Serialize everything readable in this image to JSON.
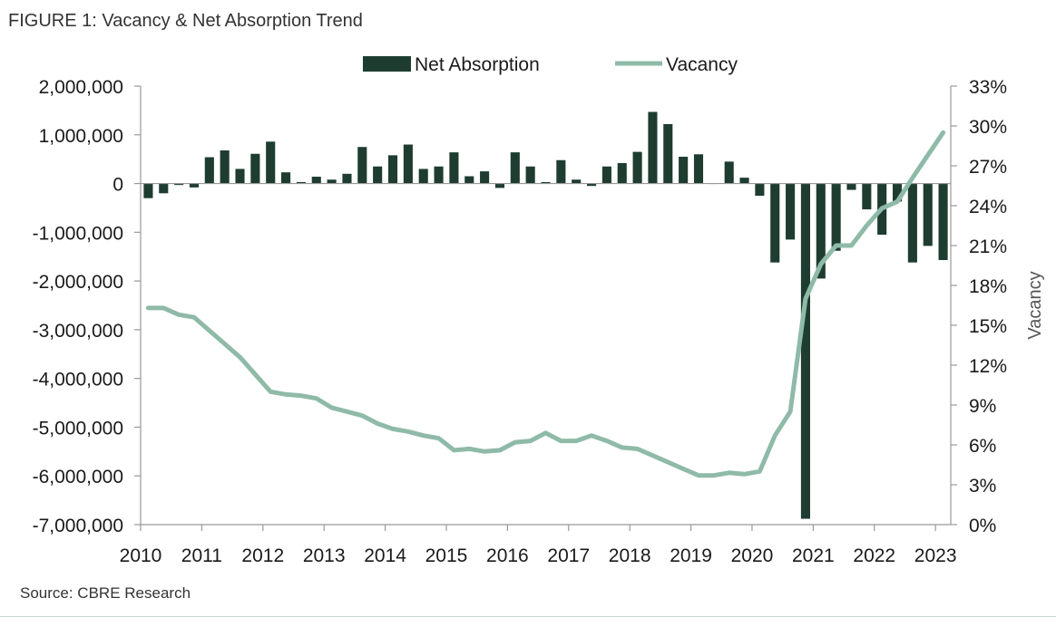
{
  "figure_title": "FIGURE 1: Vacancy & Net Absorption Trend",
  "source": "Source: CBRE Research",
  "colors": {
    "bars": "#1e3d30",
    "line": "#8fbaa8",
    "axis": "#999999"
  },
  "chart_data": {
    "type": "bar+line",
    "legend": {
      "placement": "top-center",
      "items": [
        "Net Absorption",
        "Vacancy"
      ]
    },
    "grid": false,
    "xlabel": "",
    "x_tick_labels": [
      "2010",
      "2011",
      "2012",
      "2013",
      "2014",
      "2015",
      "2016",
      "2017",
      "2018",
      "2019",
      "2020",
      "2021",
      "2022",
      "2023"
    ],
    "left_axis": {
      "label": "",
      "ylim": [
        -7000000,
        2000000
      ],
      "tick_labels": [
        "2,000,000",
        "1,000,000",
        "0",
        "-1,000,000",
        "-2,000,000",
        "-3,000,000",
        "-4,000,000",
        "-5,000,000",
        "-6,000,000",
        "-7,000,000"
      ]
    },
    "right_axis": {
      "label": "Vacancy",
      "ylim": [
        0,
        33
      ],
      "tick_labels": [
        "33%",
        "30%",
        "27%",
        "24%",
        "21%",
        "18%",
        "15%",
        "12%",
        "9%",
        "6%",
        "3%",
        "0%"
      ]
    },
    "quarters": [
      "2010 Q1",
      "2010 Q2",
      "2010 Q3",
      "2010 Q4",
      "2011 Q1",
      "2011 Q2",
      "2011 Q3",
      "2011 Q4",
      "2012 Q1",
      "2012 Q2",
      "2012 Q3",
      "2012 Q4",
      "2013 Q1",
      "2013 Q2",
      "2013 Q3",
      "2013 Q4",
      "2014 Q1",
      "2014 Q2",
      "2014 Q3",
      "2014 Q4",
      "2015 Q1",
      "2015 Q2",
      "2015 Q3",
      "2015 Q4",
      "2016 Q1",
      "2016 Q2",
      "2016 Q3",
      "2016 Q4",
      "2017 Q1",
      "2017 Q2",
      "2017 Q3",
      "2017 Q4",
      "2018 Q1",
      "2018 Q2",
      "2018 Q3",
      "2018 Q4",
      "2019 Q1",
      "2019 Q2",
      "2019 Q3",
      "2019 Q4",
      "2020 Q1",
      "2020 Q2",
      "2020 Q3",
      "2020 Q4",
      "2021 Q1",
      "2021 Q2",
      "2021 Q3",
      "2021 Q4",
      "2022 Q1",
      "2022 Q2",
      "2022 Q3",
      "2022 Q4",
      "2023 Q1"
    ],
    "series": [
      {
        "name": "Net Absorption",
        "type": "bar",
        "axis": "left",
        "values": [
          -300000,
          -200000,
          -30000,
          -80000,
          540000,
          680000,
          300000,
          610000,
          860000,
          230000,
          30000,
          140000,
          80000,
          200000,
          750000,
          350000,
          580000,
          800000,
          300000,
          350000,
          640000,
          150000,
          250000,
          -90000,
          640000,
          350000,
          30000,
          480000,
          80000,
          -50000,
          350000,
          420000,
          650000,
          1470000,
          1220000,
          550000,
          600000,
          0,
          450000,
          120000,
          -250000,
          -1620000,
          -1150000,
          -6880000,
          -1950000,
          -1380000,
          -130000,
          -530000,
          -1050000,
          -370000,
          -1620000,
          -1280000,
          -1570000
        ]
      },
      {
        "name": "Vacancy",
        "type": "line",
        "axis": "right",
        "values": [
          16.3,
          16.3,
          15.8,
          15.6,
          14.6,
          13.6,
          12.6,
          11.3,
          10.0,
          9.8,
          9.7,
          9.5,
          8.8,
          8.5,
          8.2,
          7.6,
          7.2,
          7.0,
          6.7,
          6.5,
          5.6,
          5.7,
          5.5,
          5.6,
          6.2,
          6.3,
          6.9,
          6.3,
          6.3,
          6.7,
          6.3,
          5.8,
          5.7,
          5.2,
          4.7,
          4.2,
          3.7,
          3.7,
          3.9,
          3.8,
          4.0,
          6.7,
          8.5,
          17.0,
          19.6,
          21.0,
          21.0,
          22.5,
          23.8,
          24.3,
          26.1,
          27.8,
          29.5
        ]
      }
    ]
  }
}
